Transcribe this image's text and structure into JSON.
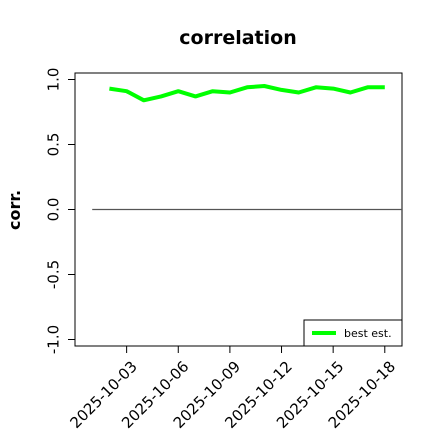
{
  "chart_data": {
    "type": "line",
    "title": "correlation",
    "xlabel": "",
    "ylabel": "corr.",
    "x": [
      "2025-10-02",
      "2025-10-03",
      "2025-10-04",
      "2025-10-05",
      "2025-10-06",
      "2025-10-07",
      "2025-10-08",
      "2025-10-09",
      "2025-10-10",
      "2025-10-11",
      "2025-10-12",
      "2025-10-13",
      "2025-10-14",
      "2025-10-15",
      "2025-10-16",
      "2025-10-17",
      "2025-10-18"
    ],
    "x_tick_labels": [
      "2025-10-03",
      "2025-10-06",
      "2025-10-09",
      "2025-10-12",
      "2025-10-15",
      "2025-10-18"
    ],
    "highlight_tick": "2025-10-09",
    "highlight_color": "#228B22",
    "xlim": [
      "2025-09-30",
      "2025-10-19"
    ],
    "ylim": [
      -1.05,
      1.05
    ],
    "y_ticks": [
      -1.0,
      -0.5,
      0.0,
      0.5,
      1.0
    ],
    "y_tick_labels": [
      "-1.0",
      "-0.5",
      "0.0",
      "0.5",
      "1.0"
    ],
    "reference_line": {
      "y": 0.0,
      "x_range": [
        "2025-10-01",
        "2025-10-19"
      ],
      "color": "#555555"
    },
    "series": [
      {
        "name": "best est.",
        "color": "#00ff00",
        "values": [
          0.93,
          0.91,
          0.84,
          0.87,
          0.91,
          0.87,
          0.91,
          0.9,
          0.94,
          0.95,
          0.92,
          0.9,
          0.94,
          0.93,
          0.9,
          0.94,
          0.94
        ]
      }
    ],
    "legend": {
      "position": "bottom-right",
      "entries": [
        "best est."
      ]
    },
    "grid": false
  }
}
